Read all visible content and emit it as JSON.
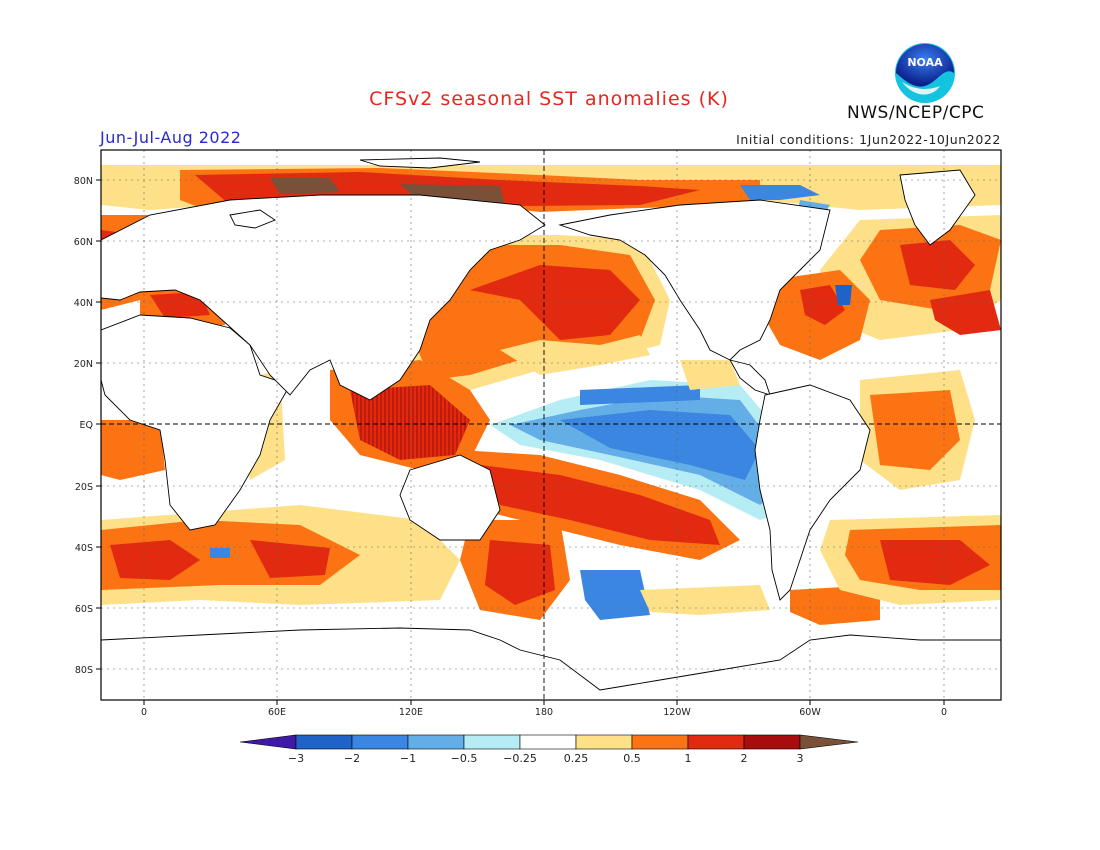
{
  "header": {
    "title": "CFSv2 seasonal SST anomalies (K)",
    "season": "Jun-Jul-Aug 2022",
    "initial_conditions": "Initial conditions: 1Jun2022-10Jun2022",
    "agency": "NWS/NCEP/CPC",
    "logo_text": "NOAA"
  },
  "map": {
    "lat_labels": [
      "80N",
      "60N",
      "40N",
      "20N",
      "EQ",
      "20S",
      "40S",
      "60S",
      "80S"
    ],
    "lon_labels": [
      "0",
      "60E",
      "120E",
      "180",
      "120W",
      "60W",
      "0"
    ]
  },
  "colorbar": {
    "labels": [
      "−3",
      "−2",
      "−1",
      "−0.5",
      "−0.25",
      "0.25",
      "0.5",
      "1",
      "2",
      "3"
    ],
    "colors": [
      "#3f1aa6",
      "#1f63c8",
      "#3a86e0",
      "#64aee8",
      "#b6ecf4",
      "#ffffff",
      "#fde088",
      "#fb7312",
      "#e12a10",
      "#a80c0c",
      "#7a5038"
    ]
  },
  "colors": {
    "title": "#e8251f",
    "season": "#2929d6",
    "ocean": "#ffffff",
    "coast": "#000000"
  }
}
